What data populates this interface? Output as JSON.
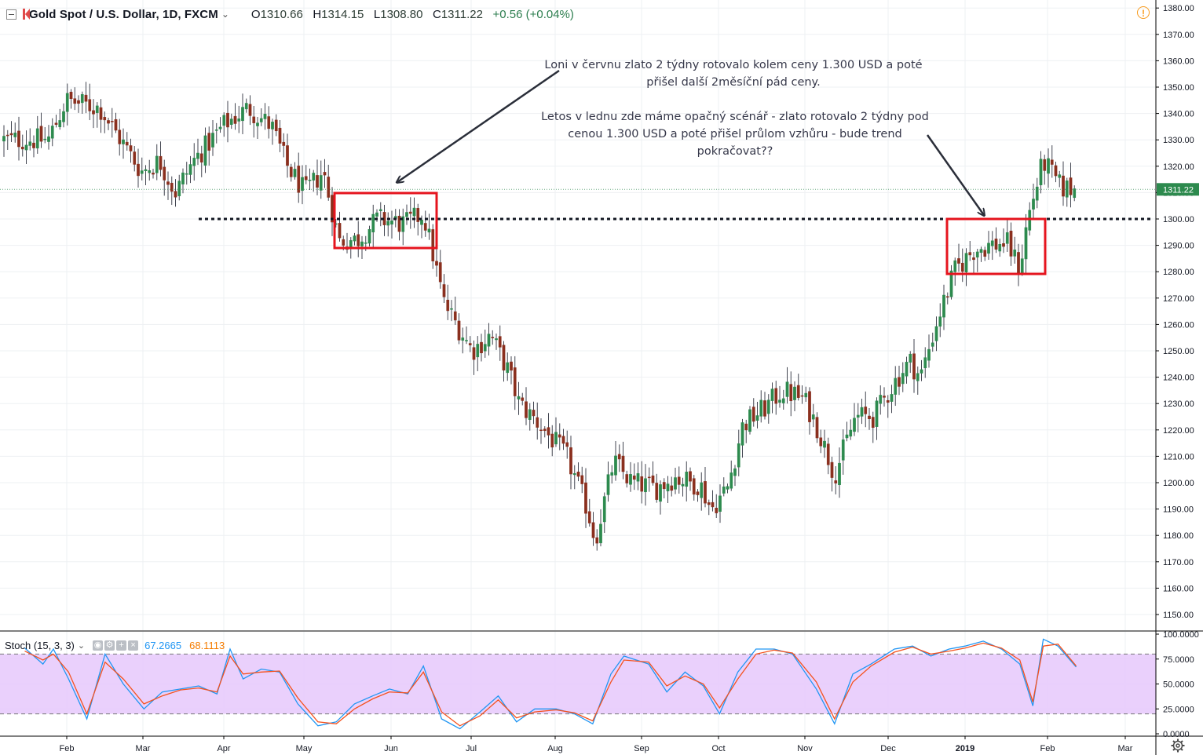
{
  "legend": {
    "symbol": "Gold Spot / U.S. Dollar, 1D, FXCM",
    "open_label": "O",
    "open": "1310.66",
    "high_label": "H",
    "high": "1314.15",
    "low_label": "L",
    "low": "1308.80",
    "close_label": "C",
    "close": "1311.22",
    "change": "+0.56 (+0.04%)"
  },
  "annotations": {
    "note1": "Loni v červnu zlato 2 týdny rotovalo kolem ceny 1.300 USD a poté přišel další 2měsíční pád ceny.",
    "note2": "Letos v lednu zde máme opačný scénář - zlato rotovalo 2 týdny pod cenou 1.300 USD a poté přišel průlom vzhůru - bude trend pokračovat??"
  },
  "stoch_legend": {
    "name": "Stoch (15, 3, 3)",
    "k_value": "67.2665",
    "d_value": "68.1113"
  },
  "price_badge": "1311.22",
  "colors": {
    "up": "#2d8a4e",
    "down": "#8a2f1e",
    "box": "#e5141e",
    "stoch_k": "#2196f3",
    "stoch_d": "#f4511e",
    "stoch_band": "#e6c8fb",
    "price_badge_bg": "#2d8a4e",
    "level_line": "#131722",
    "arrow": "#2a2e39"
  },
  "icons": [
    "collapse-icon",
    "symbol-flag-icon",
    "chevron-down-icon",
    "warning-icon",
    "eye-icon",
    "settings-icon",
    "add-icon",
    "close-icon",
    "gear-icon"
  ],
  "chart_data": [
    {
      "type": "candlestick",
      "series_title": "Gold Spot / U.S. Dollar, 1D, FXCM",
      "x_tick_labels": [
        "Feb",
        "Mar",
        "Apr",
        "May",
        "Jun",
        "Jul",
        "Aug",
        "Sep",
        "Oct",
        "Nov",
        "Dec",
        "2019",
        "Feb",
        "Mar"
      ],
      "y_tick_labels": [
        "1150.00",
        "1160.00",
        "1170.00",
        "1180.00",
        "1190.00",
        "1200.00",
        "1210.00",
        "1220.00",
        "1230.00",
        "1240.00",
        "1250.00",
        "1260.00",
        "1270.00",
        "1280.00",
        "1290.00",
        "1300.00",
        "1310.00",
        "1320.00",
        "1330.00",
        "1340.00",
        "1350.00",
        "1360.00",
        "1370.00",
        "1380.00"
      ],
      "ylim": [
        1142,
        1380
      ],
      "grid": true,
      "last_price": 1311.22,
      "horizontal_level": 1300,
      "anchors": [
        {
          "date": "Jan 24",
          "price": 1330
        },
        {
          "date": "Jan 31",
          "price": 1345
        },
        {
          "date": "Feb 14",
          "price": 1342
        },
        {
          "date": "Feb 22",
          "price": 1330
        },
        {
          "date": "Mar 01",
          "price": 1318
        },
        {
          "date": "Mar 08",
          "price": 1322
        },
        {
          "date": "Mar 14",
          "price": 1310
        },
        {
          "date": "Mar 21",
          "price": 1322
        },
        {
          "date": "Apr 02",
          "price": 1336
        },
        {
          "date": "Apr 11",
          "price": 1342
        },
        {
          "date": "Apr 20",
          "price": 1335
        },
        {
          "date": "Apr 26",
          "price": 1320
        },
        {
          "date": "May 02",
          "price": 1310
        },
        {
          "date": "May 09",
          "price": 1318
        },
        {
          "date": "May 15",
          "price": 1292
        },
        {
          "date": "May 22",
          "price": 1292
        },
        {
          "date": "May 30",
          "price": 1300
        },
        {
          "date": "Jun 07",
          "price": 1298
        },
        {
          "date": "Jun 14",
          "price": 1302
        },
        {
          "date": "Jun 22",
          "price": 1268
        },
        {
          "date": "Jul 02",
          "price": 1250
        },
        {
          "date": "Jul 09",
          "price": 1256
        },
        {
          "date": "Jul 16",
          "price": 1242
        },
        {
          "date": "Jul 20",
          "price": 1230
        },
        {
          "date": "Jul 27",
          "price": 1223
        },
        {
          "date": "Aug 06",
          "price": 1210
        },
        {
          "date": "Aug 14",
          "price": 1190
        },
        {
          "date": "Aug 17",
          "price": 1178
        },
        {
          "date": "Aug 24",
          "price": 1208
        },
        {
          "date": "Aug 31",
          "price": 1200
        },
        {
          "date": "Sep 07",
          "price": 1198
        },
        {
          "date": "Sep 14",
          "price": 1202
        },
        {
          "date": "Sep 24",
          "price": 1199
        },
        {
          "date": "Sep 28",
          "price": 1190
        },
        {
          "date": "Oct 05",
          "price": 1198
        },
        {
          "date": "Oct 11",
          "price": 1222
        },
        {
          "date": "Oct 19",
          "price": 1228
        },
        {
          "date": "Oct 26",
          "price": 1235
        },
        {
          "date": "Nov 01",
          "price": 1232
        },
        {
          "date": "Nov 06",
          "price": 1222
        },
        {
          "date": "Nov 13",
          "price": 1203
        },
        {
          "date": "Nov 21",
          "price": 1225
        },
        {
          "date": "Nov 28",
          "price": 1225
        },
        {
          "date": "Dec 04",
          "price": 1238
        },
        {
          "date": "Dec 10",
          "price": 1246
        },
        {
          "date": "Dec 14",
          "price": 1240
        },
        {
          "date": "Dec 20",
          "price": 1260
        },
        {
          "date": "Dec 27",
          "price": 1280
        },
        {
          "date": "Jan 04",
          "price": 1288
        },
        {
          "date": "Jan 10",
          "price": 1290
        },
        {
          "date": "Jan 17",
          "price": 1291
        },
        {
          "date": "Jan 22",
          "price": 1281
        },
        {
          "date": "Jan 25",
          "price": 1300
        },
        {
          "date": "Jan 31",
          "price": 1322
        },
        {
          "date": "Feb 06",
          "price": 1312
        },
        {
          "date": "Feb 12",
          "price": 1311
        }
      ]
    },
    {
      "type": "line",
      "series_title": "Stoch (15, 3, 3)",
      "y_tick_labels": [
        "0.0000",
        "25.0000",
        "50.0000",
        "75.0000",
        "100.0000"
      ],
      "ylim": [
        0,
        100
      ],
      "bands": [
        20,
        80
      ],
      "series": [
        {
          "name": "%K",
          "points": [
            {
              "date": "Jan 15",
              "value": 86
            },
            {
              "date": "Jan 22",
              "value": 70
            },
            {
              "date": "Jan 26",
              "value": 85
            },
            {
              "date": "Feb 02",
              "value": 55
            },
            {
              "date": "Feb 09",
              "value": 15
            },
            {
              "date": "Feb 16",
              "value": 80
            },
            {
              "date": "Feb 23",
              "value": 50
            },
            {
              "date": "Mar 02",
              "value": 25
            },
            {
              "date": "Mar 09",
              "value": 42
            },
            {
              "date": "Mar 16",
              "value": 45
            },
            {
              "date": "Mar 23",
              "value": 48
            },
            {
              "date": "Mar 30",
              "value": 40
            },
            {
              "date": "Apr 04",
              "value": 85
            },
            {
              "date": "Apr 09",
              "value": 55
            },
            {
              "date": "Apr 16",
              "value": 65
            },
            {
              "date": "Apr 23",
              "value": 62
            },
            {
              "date": "Apr 30",
              "value": 30
            },
            {
              "date": "May 07",
              "value": 8
            },
            {
              "date": "May 14",
              "value": 12
            },
            {
              "date": "May 21",
              "value": 30
            },
            {
              "date": "May 28",
              "value": 38
            },
            {
              "date": "Jun 01",
              "value": 45
            },
            {
              "date": "Jun 08",
              "value": 40
            },
            {
              "date": "Jun 14",
              "value": 68
            },
            {
              "date": "Jun 21",
              "value": 15
            },
            {
              "date": "Jun 28",
              "value": 5
            },
            {
              "date": "Jul 05",
              "value": 22
            },
            {
              "date": "Jul 12",
              "value": 38
            },
            {
              "date": "Jul 19",
              "value": 12
            },
            {
              "date": "Jul 26",
              "value": 25
            },
            {
              "date": "Aug 02",
              "value": 25
            },
            {
              "date": "Aug 09",
              "value": 20
            },
            {
              "date": "Aug 16",
              "value": 10
            },
            {
              "date": "Aug 23",
              "value": 60
            },
            {
              "date": "Aug 28",
              "value": 78
            },
            {
              "date": "Sep 04",
              "value": 70
            },
            {
              "date": "Sep 11",
              "value": 42
            },
            {
              "date": "Sep 18",
              "value": 62
            },
            {
              "date": "Sep 25",
              "value": 48
            },
            {
              "date": "Oct 02",
              "value": 20
            },
            {
              "date": "Oct 09",
              "value": 62
            },
            {
              "date": "Oct 16",
              "value": 85
            },
            {
              "date": "Oct 23",
              "value": 85
            },
            {
              "date": "Oct 30",
              "value": 80
            },
            {
              "date": "Nov 06",
              "value": 45
            },
            {
              "date": "Nov 13",
              "value": 10
            },
            {
              "date": "Nov 20",
              "value": 60
            },
            {
              "date": "Nov 27",
              "value": 70
            },
            {
              "date": "Dec 04",
              "value": 85
            },
            {
              "date": "Dec 11",
              "value": 88
            },
            {
              "date": "Dec 18",
              "value": 78
            },
            {
              "date": "Dec 25",
              "value": 85
            },
            {
              "date": "Jan 01",
              "value": 88
            },
            {
              "date": "Jan 08",
              "value": 93
            },
            {
              "date": "Jan 15",
              "value": 85
            },
            {
              "date": "Jan 22",
              "value": 70
            },
            {
              "date": "Jan 27",
              "value": 28
            },
            {
              "date": "Jan 31",
              "value": 95
            },
            {
              "date": "Feb 05",
              "value": 88
            },
            {
              "date": "Feb 12",
              "value": 67
            }
          ]
        },
        {
          "name": "%D",
          "points": [
            {
              "date": "Jan 15",
              "value": 83
            },
            {
              "date": "Jan 22",
              "value": 74
            },
            {
              "date": "Jan 26",
              "value": 80
            },
            {
              "date": "Feb 02",
              "value": 62
            },
            {
              "date": "Feb 09",
              "value": 20
            },
            {
              "date": "Feb 16",
              "value": 72
            },
            {
              "date": "Feb 23",
              "value": 55
            },
            {
              "date": "Mar 02",
              "value": 30
            },
            {
              "date": "Mar 09",
              "value": 38
            },
            {
              "date": "Mar 16",
              "value": 44
            },
            {
              "date": "Mar 23",
              "value": 46
            },
            {
              "date": "Mar 30",
              "value": 42
            },
            {
              "date": "Apr 04",
              "value": 78
            },
            {
              "date": "Apr 09",
              "value": 60
            },
            {
              "date": "Apr 16",
              "value": 62
            },
            {
              "date": "Apr 23",
              "value": 63
            },
            {
              "date": "Apr 30",
              "value": 36
            },
            {
              "date": "May 07",
              "value": 12
            },
            {
              "date": "May 14",
              "value": 10
            },
            {
              "date": "May 21",
              "value": 25
            },
            {
              "date": "May 28",
              "value": 35
            },
            {
              "date": "Jun 01",
              "value": 42
            },
            {
              "date": "Jun 08",
              "value": 41
            },
            {
              "date": "Jun 14",
              "value": 62
            },
            {
              "date": "Jun 21",
              "value": 22
            },
            {
              "date": "Jun 28",
              "value": 8
            },
            {
              "date": "Jul 05",
              "value": 18
            },
            {
              "date": "Jul 12",
              "value": 34
            },
            {
              "date": "Jul 19",
              "value": 16
            },
            {
              "date": "Jul 26",
              "value": 22
            },
            {
              "date": "Aug 02",
              "value": 24
            },
            {
              "date": "Aug 09",
              "value": 21
            },
            {
              "date": "Aug 16",
              "value": 13
            },
            {
              "date": "Aug 23",
              "value": 52
            },
            {
              "date": "Aug 28",
              "value": 74
            },
            {
              "date": "Sep 04",
              "value": 72
            },
            {
              "date": "Sep 11",
              "value": 48
            },
            {
              "date": "Sep 18",
              "value": 58
            },
            {
              "date": "Sep 25",
              "value": 50
            },
            {
              "date": "Oct 02",
              "value": 26
            },
            {
              "date": "Oct 09",
              "value": 55
            },
            {
              "date": "Oct 16",
              "value": 80
            },
            {
              "date": "Oct 23",
              "value": 84
            },
            {
              "date": "Oct 30",
              "value": 81
            },
            {
              "date": "Nov 06",
              "value": 52
            },
            {
              "date": "Nov 13",
              "value": 15
            },
            {
              "date": "Nov 20",
              "value": 52
            },
            {
              "date": "Nov 27",
              "value": 68
            },
            {
              "date": "Dec 04",
              "value": 82
            },
            {
              "date": "Dec 11",
              "value": 87
            },
            {
              "date": "Dec 18",
              "value": 80
            },
            {
              "date": "Dec 25",
              "value": 83
            },
            {
              "date": "Jan 01",
              "value": 86
            },
            {
              "date": "Jan 08",
              "value": 91
            },
            {
              "date": "Jan 15",
              "value": 86
            },
            {
              "date": "Jan 22",
              "value": 74
            },
            {
              "date": "Jan 27",
              "value": 32
            },
            {
              "date": "Jan 31",
              "value": 88
            },
            {
              "date": "Feb 05",
              "value": 90
            },
            {
              "date": "Feb 12",
              "value": 68
            }
          ]
        }
      ]
    }
  ]
}
